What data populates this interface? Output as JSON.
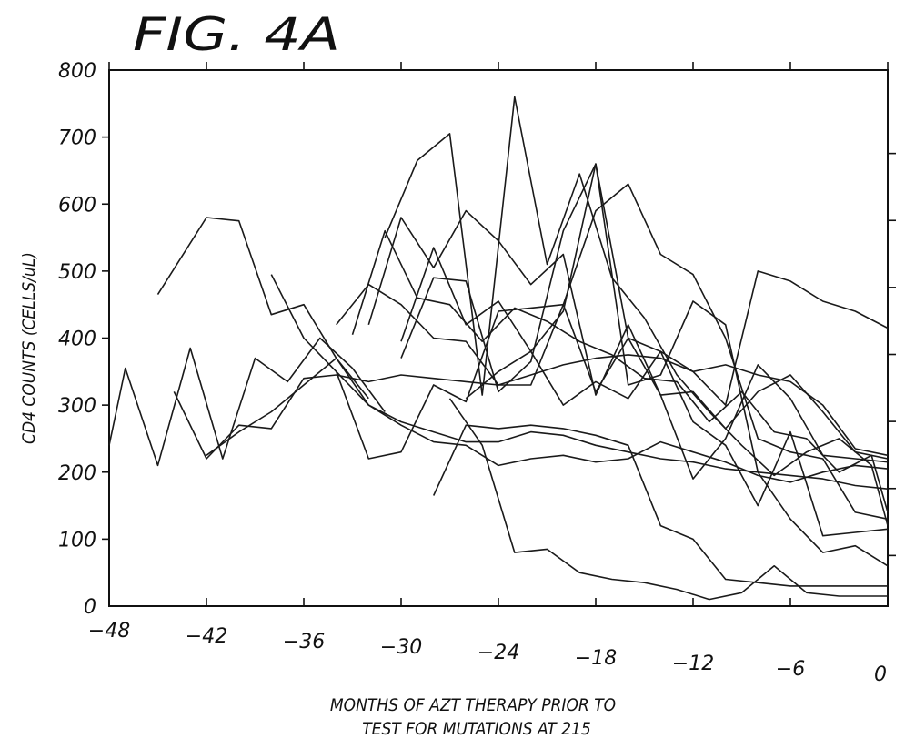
{
  "figure_label": "FIG. 4A",
  "chart_data": {
    "type": "line",
    "title": "FIG. 4A",
    "xlabel": [
      "MONTHS OF AZT THERAPY PRIOR TO",
      "TEST FOR MUTATIONS AT 215"
    ],
    "ylabel": "CD4 COUNTS (CELLS/uL)",
    "xlim": [
      -48,
      0
    ],
    "ylim": [
      0,
      800
    ],
    "x_ticks": [
      -48,
      -42,
      -36,
      -30,
      -24,
      -18,
      -12,
      -6,
      0
    ],
    "x_tick_labels": [
      "−48",
      "−42",
      "−36",
      "−30",
      "−24",
      "−18",
      "−12",
      "−6",
      "0"
    ],
    "y_ticks": [
      0,
      100,
      200,
      300,
      400,
      500,
      600,
      700,
      800
    ],
    "y_tick_labels": [
      "0",
      "100",
      "200",
      "300",
      "400",
      "500",
      "600",
      "700",
      "800"
    ],
    "grid": false,
    "series": [
      {
        "x": [
          -48,
          -47,
          -45,
          -43,
          -41,
          -39,
          -37,
          -35,
          -33,
          -31
        ],
        "y": [
          240,
          355,
          210,
          385,
          220,
          370,
          335,
          400,
          355,
          290
        ]
      },
      {
        "x": [
          -45,
          -42,
          -40,
          -38,
          -36,
          -34,
          -32
        ],
        "y": [
          465,
          580,
          575,
          435,
          450,
          370,
          310
        ]
      },
      {
        "x": [
          -44,
          -42,
          -40,
          -38,
          -36,
          -34,
          -32,
          -30,
          -28,
          -26,
          -24,
          -22,
          -20,
          -18,
          -16,
          -14,
          -12,
          -10,
          -8,
          -6,
          -4,
          -2,
          0
        ],
        "y": [
          320,
          220,
          270,
          265,
          340,
          345,
          335,
          345,
          340,
          335,
          330,
          345,
          360,
          370,
          375,
          370,
          350,
          360,
          345,
          335,
          300,
          235,
          225
        ]
      },
      {
        "x": [
          -42,
          -40,
          -38,
          -36,
          -34,
          -32,
          -30,
          -28,
          -26,
          -24,
          -22,
          -20,
          -18,
          -16,
          -14,
          -12,
          -10,
          -8,
          -6,
          -4,
          -2,
          0
        ],
        "y": [
          225,
          260,
          290,
          330,
          370,
          300,
          275,
          260,
          245,
          245,
          260,
          255,
          240,
          230,
          220,
          215,
          205,
          200,
          195,
          190,
          180,
          175
        ]
      },
      {
        "x": [
          -38,
          -36,
          -34,
          -32,
          -30,
          -28,
          -26,
          -24,
          -22,
          -20,
          -18,
          -16,
          -14,
          -12,
          -10,
          -8,
          -6,
          -4,
          -2,
          0
        ],
        "y": [
          495,
          400,
          350,
          220,
          230,
          330,
          305,
          440,
          445,
          450,
          320,
          400,
          315,
          320,
          265,
          320,
          345,
          290,
          230,
          220
        ]
      },
      {
        "x": [
          -34,
          -32,
          -30,
          -28,
          -26,
          -24,
          -22,
          -20,
          -18,
          -16,
          -14,
          -12,
          -10,
          -8,
          -6,
          -4,
          -2,
          0
        ],
        "y": [
          350,
          300,
          270,
          245,
          240,
          210,
          220,
          225,
          215,
          220,
          245,
          230,
          215,
          195,
          185,
          200,
          210,
          205
        ]
      },
      {
        "x": [
          -34,
          -32,
          -30,
          -28,
          -26,
          -24,
          -22,
          -20,
          -18,
          -16,
          -14,
          -12,
          -10,
          -8,
          -6,
          -4,
          -2,
          0
        ],
        "y": [
          420,
          480,
          450,
          400,
          395,
          330,
          330,
          450,
          590,
          630,
          525,
          495,
          400,
          250,
          230,
          220,
          140,
          130
        ]
      },
      {
        "x": [
          -33,
          -31,
          -29,
          -27,
          -25,
          -23,
          -21,
          -19,
          -17,
          -15,
          -13,
          -11,
          -9,
          -7,
          -5,
          -3,
          -1,
          0
        ],
        "y": [
          405,
          560,
          460,
          450,
          395,
          445,
          425,
          395,
          375,
          340,
          335,
          275,
          320,
          260,
          250,
          200,
          225,
          140
        ]
      },
      {
        "x": [
          -31,
          -29,
          -27,
          -25,
          -23,
          -21,
          -19,
          -17,
          -15,
          -13,
          -11,
          -9,
          -7,
          -5,
          -3,
          -1,
          0
        ],
        "y": [
          550,
          665,
          705,
          315,
          760,
          510,
          645,
          490,
          430,
          345,
          290,
          240,
          195,
          230,
          250,
          210,
          120
        ]
      },
      {
        "x": [
          -32,
          -30,
          -28,
          -26,
          -24,
          -22,
          -20,
          -18,
          -16,
          -14,
          -12,
          -10,
          -8,
          -6,
          -4,
          -2,
          0
        ],
        "y": [
          420,
          580,
          505,
          590,
          545,
          480,
          525,
          315,
          420,
          315,
          190,
          250,
          360,
          310,
          225,
          220,
          215
        ]
      },
      {
        "x": [
          -30,
          -28,
          -26,
          -24,
          -22,
          -20,
          -18,
          -16,
          -14,
          -12,
          -10,
          -8,
          -6,
          -4,
          -2,
          0
        ],
        "y": [
          395,
          535,
          420,
          455,
          380,
          440,
          660,
          400,
          380,
          350,
          300,
          500,
          485,
          455,
          440,
          415
        ]
      },
      {
        "x": [
          -30,
          -28,
          -26,
          -24,
          -22,
          -20,
          -18,
          -16,
          -14,
          -12,
          -10,
          -8,
          -6,
          -4,
          -2,
          0
        ],
        "y": [
          370,
          490,
          485,
          320,
          365,
          560,
          660,
          330,
          345,
          455,
          420,
          200,
          130,
          80,
          90,
          60
        ]
      },
      {
        "x": [
          -27,
          -25,
          -23,
          -21,
          -19,
          -17,
          -15,
          -13,
          -11,
          -9,
          -7,
          -5,
          -3,
          -1,
          0
        ],
        "y": [
          310,
          240,
          80,
          85,
          50,
          40,
          35,
          25,
          10,
          20,
          60,
          20,
          15,
          15,
          15
        ]
      },
      {
        "x": [
          -28,
          -26,
          -24,
          -22,
          -20,
          -18,
          -16,
          -14,
          -12,
          -10,
          -8,
          -6,
          -4,
          -2,
          0
        ],
        "y": [
          165,
          270,
          265,
          270,
          265,
          255,
          240,
          120,
          100,
          40,
          35,
          30,
          30,
          30,
          30
        ]
      },
      {
        "x": [
          -26,
          -24,
          -22,
          -20,
          -18,
          -16,
          -14,
          -12,
          -10,
          -8,
          -6,
          -4,
          -2,
          0
        ],
        "y": [
          310,
          350,
          380,
          300,
          335,
          310,
          380,
          275,
          240,
          150,
          260,
          105,
          110,
          115
        ]
      }
    ]
  }
}
